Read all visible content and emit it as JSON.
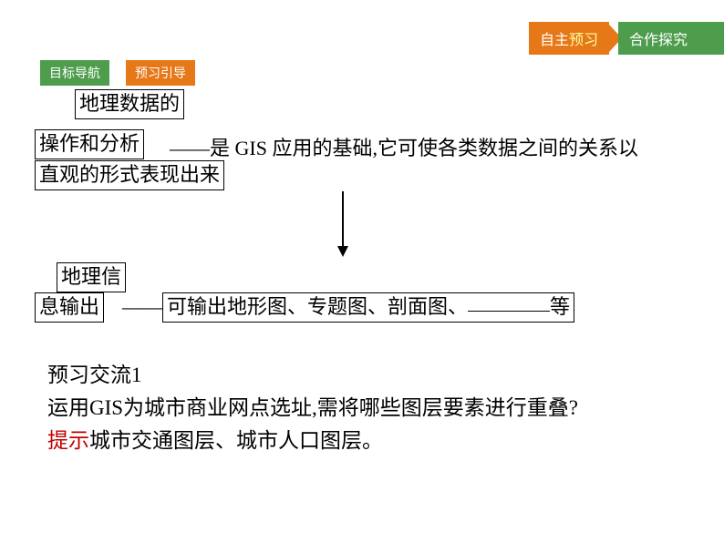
{
  "colors": {
    "orange": "#e67817",
    "green": "#4e9d4d",
    "highlight": "#fffea2",
    "red": "#c00000",
    "text": "#000000",
    "background": "#ffffff"
  },
  "topNav": {
    "item1_prefix": "自主",
    "item1_highlight": "预习",
    "item2": "合作探究"
  },
  "subNav": {
    "left": "目标导航",
    "right": "预习引导"
  },
  "diagram1": {
    "topBox": "地理数据的",
    "leftBox": "操作和分析",
    "rightText": "——是 GIS 应用的基础,它可使各类数据之间的关系以",
    "bottomBox": "直观的形式表现出来"
  },
  "diagram2": {
    "topBox": "地理信",
    "leftBox": "息输出",
    "rightPrefix": "——",
    "rightBoxText": "可输出地形图、专题图、剖面图、",
    "rightSuffix": "等"
  },
  "body": {
    "title": "预习交流1",
    "question": "运用GIS为城市商业网点选址,需将哪些图层要素进行重叠?",
    "hintLabel": "提示",
    "answer": "城市交通图层、城市人口图层。"
  }
}
